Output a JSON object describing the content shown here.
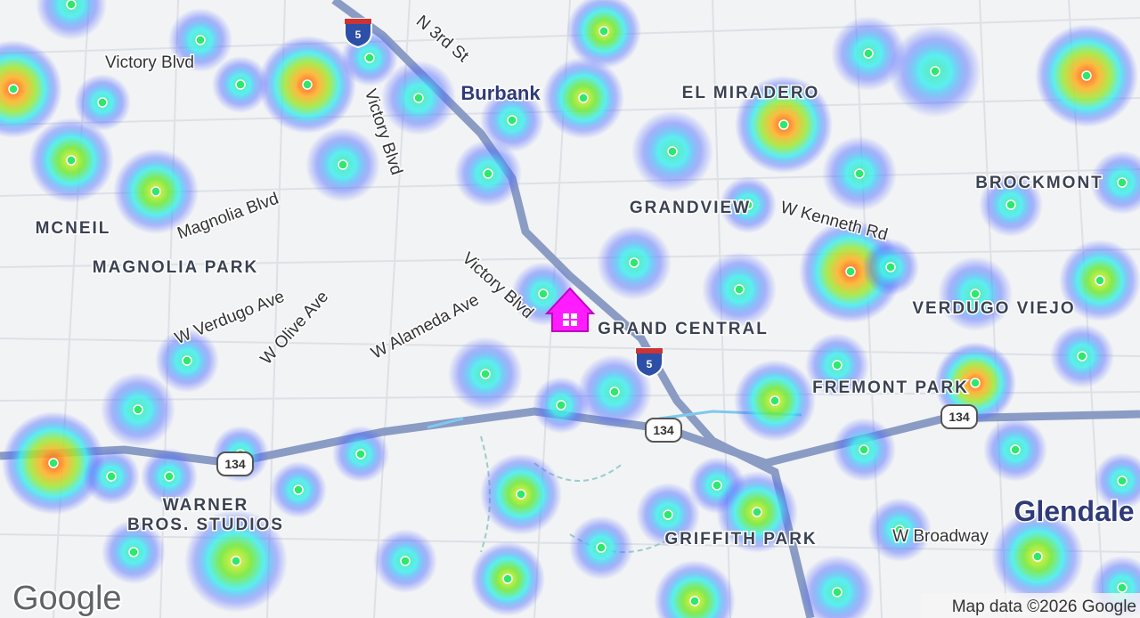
{
  "streets": [
    "Victory Blvd",
    "N 3rd St",
    "Victory Blvd",
    "Magnolia Blvd",
    "W Kenneth Rd",
    "W Verdugo Ave",
    "W Olive Ave",
    "W Alameda Ave",
    "Victory Blvd",
    "W Broadway"
  ],
  "places": [
    "Burbank",
    "EL MIRADERO",
    "MCNEIL",
    "MAGNOLIA PARK",
    "GRANDVIEW",
    "BROCKMONT",
    "GRAND CENTRAL",
    "VERDUGO VIEJO",
    "FREMONT PARK",
    "WARNER",
    "BROS. STUDIOS",
    "GRIFFITH PARK",
    "Glendale"
  ],
  "shields": [
    "5",
    "5",
    "134",
    "134",
    "134"
  ],
  "logo": "Google",
  "attribution": "Map data ©2026 Google"
}
